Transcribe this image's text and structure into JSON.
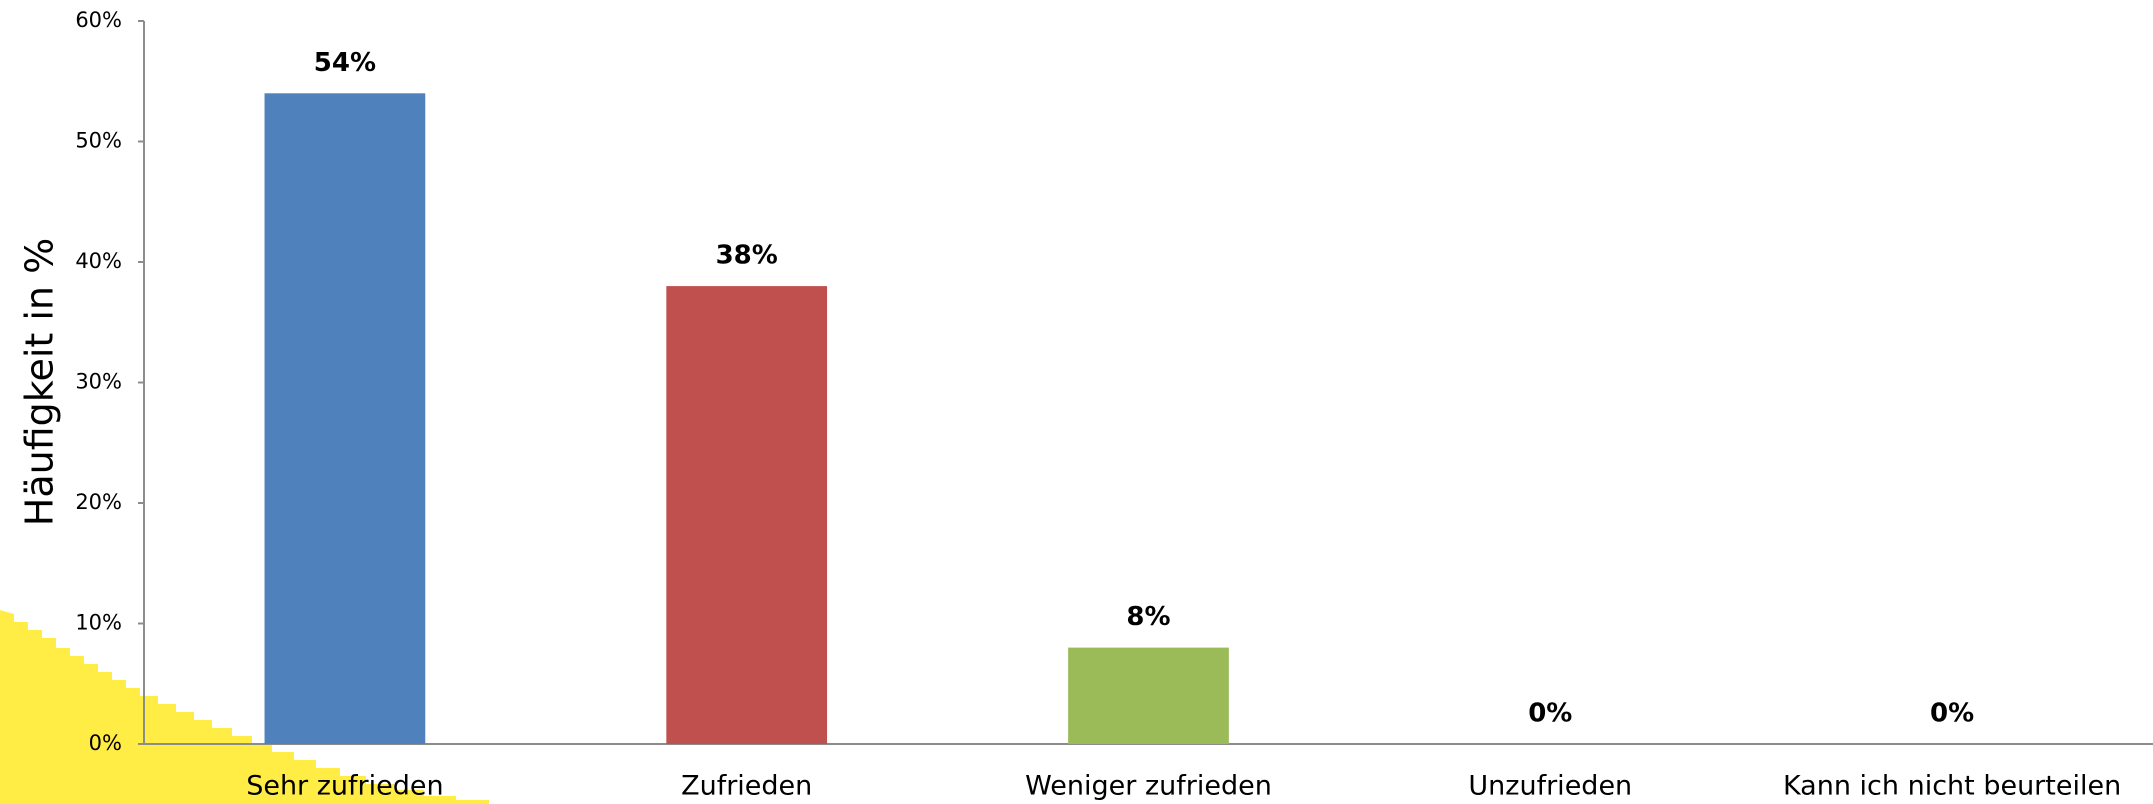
{
  "chart_data": {
    "type": "bar",
    "y_axis_label": "Häufigkeit in %",
    "categories": [
      "Sehr zufrieden",
      "Zufrieden",
      "Weniger zufrieden",
      "Unzufrieden",
      "Kann ich nicht beurteilen"
    ],
    "values": [
      54,
      38,
      8,
      0,
      0
    ],
    "value_labels": [
      "54%",
      "38%",
      "8%",
      "0%",
      "0%"
    ],
    "colors": [
      "#4f81bd",
      "#c0504d",
      "#9bbb59",
      "#8064a2",
      "#4bacc6"
    ],
    "ylim": [
      0,
      60
    ],
    "yticks": [
      {
        "value": 0,
        "label": "0%"
      },
      {
        "value": 10,
        "label": "10%"
      },
      {
        "value": 20,
        "label": "20%"
      },
      {
        "value": 30,
        "label": "30%"
      },
      {
        "value": 40,
        "label": "40%"
      },
      {
        "value": 50,
        "label": "50%"
      },
      {
        "value": 60,
        "label": "60%"
      }
    ],
    "grid": false
  }
}
